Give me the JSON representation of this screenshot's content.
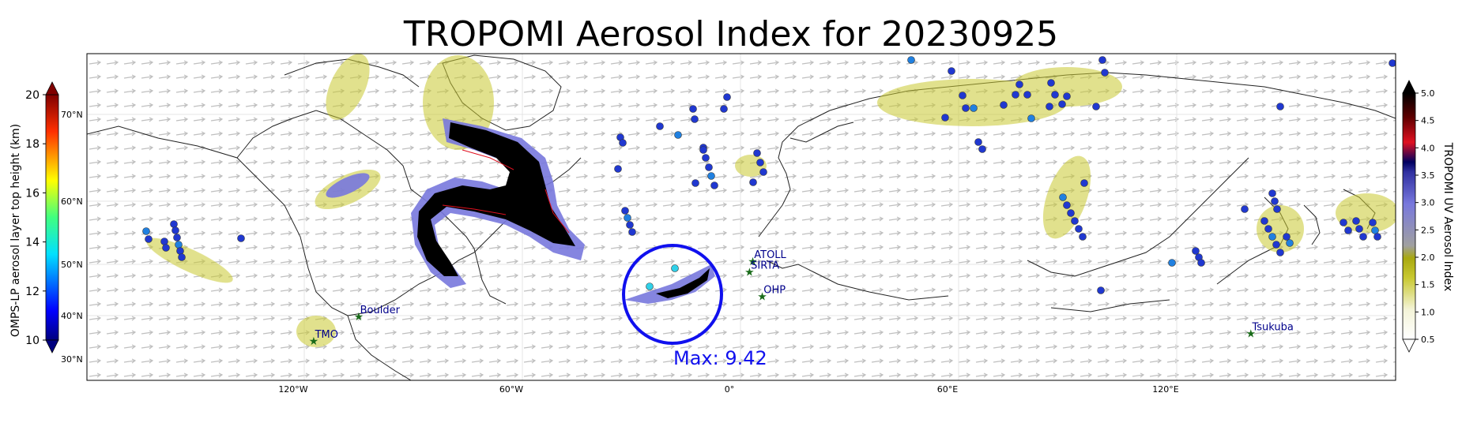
{
  "title": "TROPOMI Aerosol Index for 20230925",
  "left_colorbar": {
    "label": "OMPS-LP aerosol layer top height (km)",
    "ticks": [
      10,
      12,
      14,
      16,
      18,
      20
    ],
    "range": [
      10,
      20
    ]
  },
  "right_colorbar": {
    "label": "TROPOMI UV Aerosol Index",
    "ticks": [
      "0.5",
      "1.0",
      "1.5",
      "2.0",
      "2.5",
      "3.0",
      "3.5",
      "4.0",
      "4.5",
      "5.0"
    ],
    "range": [
      0.5,
      5.0
    ]
  },
  "lat_labels": [
    "30°N",
    "40°N",
    "50°N",
    "60°N",
    "70°N"
  ],
  "lon_labels": [
    "120°W",
    "60°W",
    "0°",
    "60°E",
    "120°E"
  ],
  "stations": [
    {
      "name": "TMO",
      "lon": -117.7,
      "lat": 34.4
    },
    {
      "name": "Boulder",
      "lon": -105.3,
      "lat": 40.0
    },
    {
      "name": "ATOLL",
      "lon": 3.1,
      "lat": 50.6
    },
    {
      "name": "SIRTA",
      "lon": 2.2,
      "lat": 48.7
    },
    {
      "name": "OHP",
      "lon": 5.7,
      "lat": 43.9
    },
    {
      "name": "Tsukuba",
      "lon": 140.1,
      "lat": 36.1
    }
  ],
  "max_label": "Max: 9.42",
  "max_location": {
    "lon": -19,
    "lat": 45
  },
  "colors": {
    "circle": "#1010ee",
    "station": "#1a6b1a",
    "station_label": "#00008b",
    "plume_core": "#000000",
    "plume_edge": "#7878dd",
    "plume_outer": "#b8b818"
  }
}
